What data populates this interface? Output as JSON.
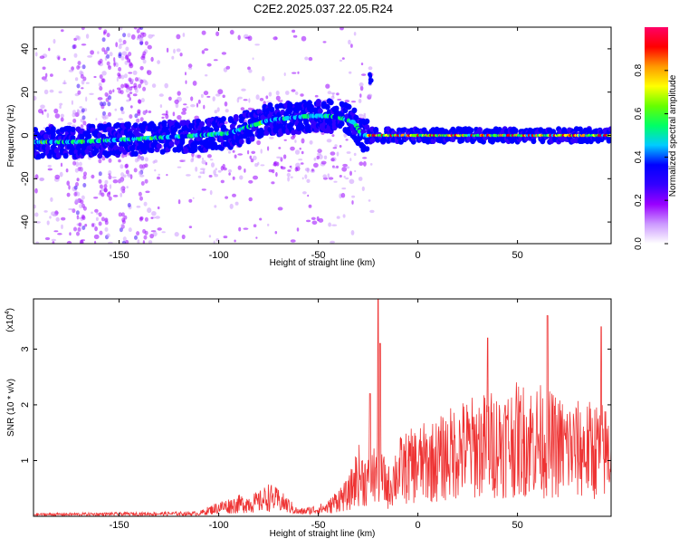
{
  "title": "C2E2.2025.037.22.05.R24",
  "chart_data": [
    {
      "type": "heatmap",
      "xlabel": "Height of straight line (km)",
      "ylabel": "Frequency (Hz)",
      "xlim": [
        -193,
        97
      ],
      "ylim": [
        -50,
        50
      ],
      "xticks": [
        -150,
        -100,
        -50,
        0,
        50
      ],
      "yticks": [
        -40,
        -20,
        0,
        20,
        40
      ],
      "colorbar": {
        "label": "Normalized spectral amplitude",
        "range": [
          0,
          1
        ],
        "ticks": [
          "0.0",
          "0.2",
          "0.4",
          "0.6",
          "0.8"
        ],
        "tick_values": [
          0,
          0.2,
          0.4,
          0.6,
          0.8
        ],
        "colors": [
          "#ffffff",
          "#cc99ff",
          "#9900ff",
          "#3300ff",
          "#0000ff",
          "#00ccff",
          "#00ff66",
          "#66ff00",
          "#ffff00",
          "#ff9900",
          "#ff0000",
          "#ff0066"
        ]
      },
      "ridge": {
        "x": [
          -190,
          -170,
          -150,
          -130,
          -110,
          -95,
          -85,
          -75,
          -65,
          -55,
          -45,
          -38,
          -32,
          -28,
          -25,
          -20,
          0,
          20,
          40,
          60,
          80,
          95
        ],
        "y": [
          -3,
          -3,
          -2,
          -1,
          0,
          1,
          4,
          7,
          8,
          9,
          9,
          8,
          6,
          0,
          0,
          0,
          0,
          0,
          0,
          0,
          0,
          0
        ]
      },
      "spot": {
        "x": -24,
        "y": 26
      }
    },
    {
      "type": "line",
      "xlabel": "Height of straight line (km)",
      "ylabel": "SNR (10 * v/v)",
      "yscale_label": "(x10",
      "yscale_exp": "4",
      "yscale_close": ")",
      "xlim": [
        -193,
        97
      ],
      "ylim": [
        0,
        3.9
      ],
      "xticks": [
        -150,
        -100,
        -50,
        0,
        50
      ],
      "yticks": [
        1,
        2,
        3
      ],
      "color": "#ee3333",
      "envelope": {
        "x": [
          -193,
          -110,
          -100,
          -90,
          -80,
          -75,
          -70,
          -65,
          -60,
          -50,
          -45,
          -40,
          -35,
          -30,
          -25,
          -20,
          -15,
          -10,
          0,
          10,
          20,
          30,
          40,
          50,
          60,
          70,
          80,
          90,
          97
        ],
        "y": [
          0.05,
          0.08,
          0.25,
          0.35,
          0.4,
          0.55,
          0.45,
          0.3,
          0.12,
          0.2,
          0.25,
          0.5,
          0.6,
          1.2,
          1.0,
          1.3,
          0.8,
          1.3,
          1.5,
          1.6,
          1.9,
          2.0,
          2.1,
          2.2,
          2.2,
          2.0,
          1.9,
          1.9,
          1.8
        ]
      },
      "peaks": [
        {
          "x": -24,
          "y": 2.2
        },
        {
          "x": -20,
          "y": 3.9
        },
        {
          "x": -19,
          "y": 3.1
        },
        {
          "x": 35,
          "y": 3.2
        },
        {
          "x": 65,
          "y": 3.6
        },
        {
          "x": 92,
          "y": 3.4
        }
      ]
    }
  ]
}
